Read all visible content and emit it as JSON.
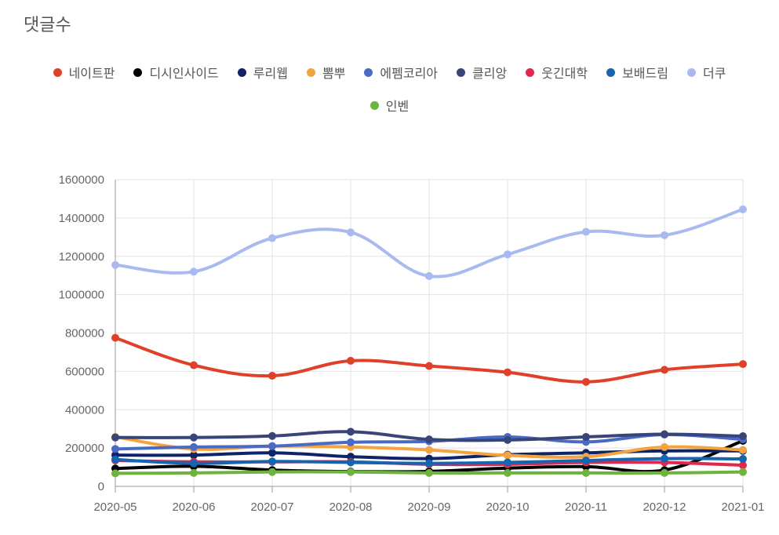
{
  "chart_data": {
    "type": "line",
    "title": "댓글수",
    "xlabel": "",
    "ylabel": "",
    "x": [
      "2020-05",
      "2020-06",
      "2020-07",
      "2020-08",
      "2020-09",
      "2020-10",
      "2020-11",
      "2020-12",
      "2021-01"
    ],
    "ylim": [
      0,
      1600000
    ],
    "yticks": [
      0,
      200000,
      400000,
      600000,
      800000,
      1000000,
      1200000,
      1400000,
      1600000
    ],
    "grid": true,
    "legend": "top",
    "series": [
      {
        "name": "네이트판",
        "color": "#e0402a",
        "values": [
          775000,
          632000,
          577000,
          655000,
          628000,
          595000,
          545000,
          608000,
          638000
        ]
      },
      {
        "name": "디시인사이드",
        "color": "#000000",
        "values": [
          93000,
          105000,
          85000,
          77000,
          78000,
          95000,
          103000,
          85000,
          238000
        ]
      },
      {
        "name": "루리웹",
        "color": "#0f2468",
        "values": [
          163000,
          163000,
          175000,
          155000,
          145000,
          165000,
          175000,
          185000,
          185000
        ]
      },
      {
        "name": "뽐뿌",
        "color": "#f4a340",
        "values": [
          258000,
          195000,
          210000,
          205000,
          190000,
          162000,
          155000,
          205000,
          190000
        ]
      },
      {
        "name": "에펨코리아",
        "color": "#4a6bc4",
        "values": [
          195000,
          205000,
          210000,
          230000,
          235000,
          258000,
          232000,
          270000,
          245000
        ]
      },
      {
        "name": "클리앙",
        "color": "#3a4577",
        "values": [
          255000,
          255000,
          263000,
          285000,
          245000,
          242000,
          258000,
          272000,
          262000
        ]
      },
      {
        "name": "웃긴대학",
        "color": "#e0284e",
        "values": [
          135000,
          128000,
          128000,
          128000,
          115000,
          115000,
          125000,
          125000,
          110000
        ]
      },
      {
        "name": "보배드림",
        "color": "#1565b0",
        "values": [
          140000,
          120000,
          130000,
          125000,
          120000,
          125000,
          135000,
          145000,
          143000
        ]
      },
      {
        "name": "더쿠",
        "color": "#aab9f0",
        "values": [
          1155000,
          1120000,
          1295000,
          1325000,
          1097000,
          1210000,
          1328000,
          1310000,
          1445000
        ]
      },
      {
        "name": "인벤",
        "color": "#6db33f",
        "values": [
          68000,
          70000,
          75000,
          75000,
          70000,
          70000,
          70000,
          70000,
          75000
        ]
      }
    ]
  }
}
